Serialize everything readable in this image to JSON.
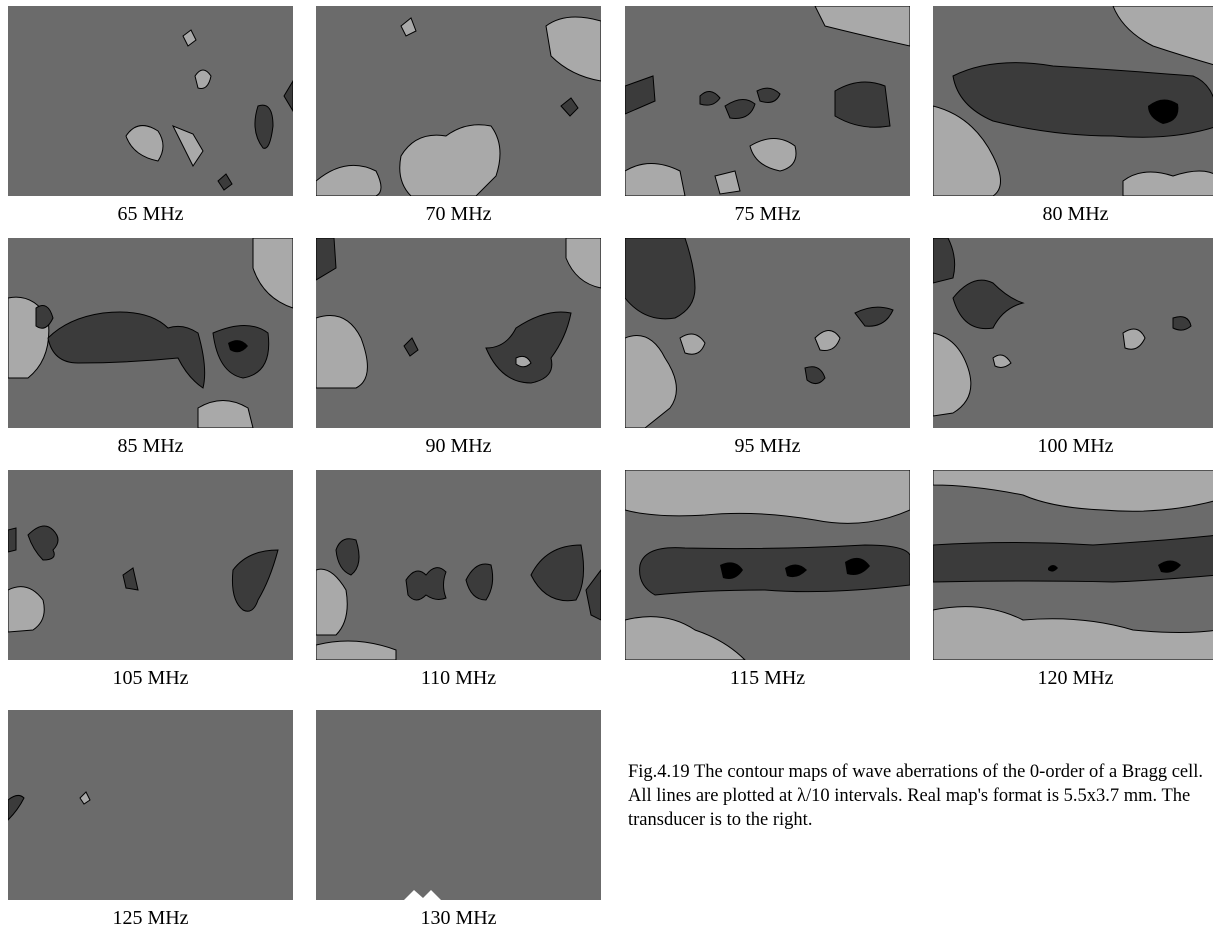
{
  "panels": [
    {
      "label": "65 MHz"
    },
    {
      "label": "70 MHz"
    },
    {
      "label": "75 MHz"
    },
    {
      "label": "80 MHz"
    },
    {
      "label": "85 MHz"
    },
    {
      "label": "90 MHz"
    },
    {
      "label": "95 MHz"
    },
    {
      "label": "100 MHz"
    },
    {
      "label": "105 MHz"
    },
    {
      "label": "110 MHz"
    },
    {
      "label": "115 MHz"
    },
    {
      "label": "120 MHz"
    },
    {
      "label": "125 MHz"
    },
    {
      "label": "130 MHz"
    }
  ],
  "caption": "Fig.4.19 The contour maps of wave aberrations of the 0-order of a Bragg cell. All lines are plotted at λ/10 intervals. Real map's format is 5.5x3.7 mm. The transducer is to the right."
}
